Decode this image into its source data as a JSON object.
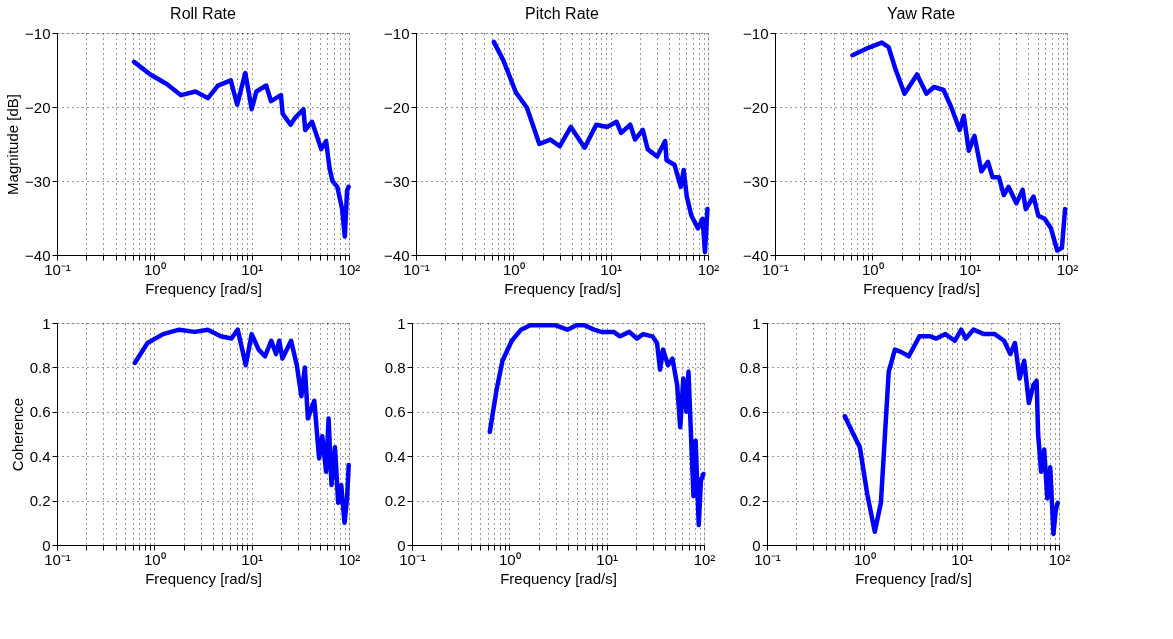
{
  "chart_data": [
    {
      "type": "line",
      "title": "Roll Rate",
      "xlabel": "Frequency [rad/s]",
      "ylabel": "Magnitude [dB]",
      "log": "x",
      "grid": true,
      "marker": "none",
      "line_style": "solid",
      "xlim": [
        0.1,
        100
      ],
      "ylim": [
        -40,
        -10
      ],
      "yticks": [
        -40,
        -30,
        -20,
        -10
      ],
      "xticks": [
        {
          "value": 0.1,
          "label": "10⁻¹"
        },
        {
          "value": 0.2,
          "label": null
        },
        {
          "value": 0.3,
          "label": null
        },
        {
          "value": 0.4,
          "label": null
        },
        {
          "value": 0.5,
          "label": null
        },
        {
          "value": 0.6,
          "label": null
        },
        {
          "value": 0.7,
          "label": null
        },
        {
          "value": 0.8,
          "label": null
        },
        {
          "value": 0.9,
          "label": null
        },
        {
          "value": 1,
          "label": "10⁰"
        },
        {
          "value": 2,
          "label": null
        },
        {
          "value": 3,
          "label": null
        },
        {
          "value": 4,
          "label": null
        },
        {
          "value": 5,
          "label": null
        },
        {
          "value": 6,
          "label": null
        },
        {
          "value": 7,
          "label": null
        },
        {
          "value": 8,
          "label": null
        },
        {
          "value": 9,
          "label": null
        },
        {
          "value": 10,
          "label": "10¹"
        },
        {
          "value": 20,
          "label": null
        },
        {
          "value": 30,
          "label": null
        },
        {
          "value": 40,
          "label": null
        },
        {
          "value": 50,
          "label": null
        },
        {
          "value": 60,
          "label": null
        },
        {
          "value": 70,
          "label": null
        },
        {
          "value": 80,
          "label": null
        },
        {
          "value": 90,
          "label": null
        },
        {
          "value": 100,
          "label": "10²"
        }
      ],
      "series": [
        {
          "color": "#0000ff",
          "x": [
            0.62,
            0.91,
            1.34,
            1.88,
            2.65,
            3.55,
            4.5,
            6.1,
            7.1,
            8.6,
            10,
            11.2,
            14.1,
            15.8,
            20,
            20.8,
            25.1,
            28.2,
            34,
            35.5,
            41.7,
            46.7,
            51.9,
            58.2,
            63,
            67.6,
            75.9,
            85,
            90.6,
            95.5,
            99
          ],
          "values": [
            -13.9,
            -15.6,
            -16.9,
            -18.4,
            -17.9,
            -18.8,
            -17.1,
            -16.4,
            -19.7,
            -15.4,
            -20.3,
            -17.9,
            -17.1,
            -19.2,
            -18.4,
            -20.9,
            -22.4,
            -21.4,
            -20.3,
            -23.1,
            -22,
            -23.9,
            -25.7,
            -24.6,
            -28.2,
            -30,
            -30.8,
            -33.8,
            -37.5,
            -31.3,
            -30.8
          ]
        }
      ]
    },
    {
      "type": "line",
      "title": "Pitch Rate",
      "xlabel": "Frequency [rad/s]",
      "log": "x",
      "grid": true,
      "marker": "none",
      "line_style": "solid",
      "xlim": [
        0.1,
        100
      ],
      "ylim": [
        -40,
        -10
      ],
      "yticks": [
        -40,
        -30,
        -20,
        -10
      ],
      "xticks": [
        {
          "value": 0.1,
          "label": "10⁻¹"
        },
        {
          "value": 0.2,
          "label": null
        },
        {
          "value": 0.3,
          "label": null
        },
        {
          "value": 0.4,
          "label": null
        },
        {
          "value": 0.5,
          "label": null
        },
        {
          "value": 0.6,
          "label": null
        },
        {
          "value": 0.7,
          "label": null
        },
        {
          "value": 0.8,
          "label": null
        },
        {
          "value": 0.9,
          "label": null
        },
        {
          "value": 1,
          "label": "10⁰"
        },
        {
          "value": 2,
          "label": null
        },
        {
          "value": 3,
          "label": null
        },
        {
          "value": 4,
          "label": null
        },
        {
          "value": 5,
          "label": null
        },
        {
          "value": 6,
          "label": null
        },
        {
          "value": 7,
          "label": null
        },
        {
          "value": 8,
          "label": null
        },
        {
          "value": 9,
          "label": null
        },
        {
          "value": 10,
          "label": "10¹"
        },
        {
          "value": 20,
          "label": null
        },
        {
          "value": 30,
          "label": null
        },
        {
          "value": 40,
          "label": null
        },
        {
          "value": 50,
          "label": null
        },
        {
          "value": 60,
          "label": null
        },
        {
          "value": 70,
          "label": null
        },
        {
          "value": 80,
          "label": null
        },
        {
          "value": 90,
          "label": null
        },
        {
          "value": 100,
          "label": "10²"
        }
      ],
      "series": [
        {
          "color": "#0000ff",
          "x": [
            0.63,
            0.79,
            1.06,
            1.38,
            1.85,
            2.4,
            3.0,
            3.9,
            5.4,
            7.1,
            9.2,
            11.5,
            12.8,
            15.9,
            17.8,
            21.4,
            24,
            30,
            36.3,
            37.5,
            45.2,
            52.5,
            56.3,
            60.5,
            67.5,
            79,
            88,
            93,
            98.7
          ],
          "values": [
            -11.2,
            -13.7,
            -18,
            -20.1,
            -25,
            -24.4,
            -25.3,
            -22.7,
            -25.5,
            -22.4,
            -22.7,
            -22,
            -23.5,
            -22.4,
            -24.4,
            -23.1,
            -25.7,
            -26.7,
            -24.6,
            -27.2,
            -27.8,
            -30.8,
            -28.5,
            -32.1,
            -34.7,
            -36.4,
            -35.1,
            -39.6,
            -33.8
          ]
        }
      ]
    },
    {
      "type": "line",
      "title": "Yaw Rate",
      "xlabel": "Frequency [rad/s]",
      "log": "x",
      "grid": true,
      "marker": "none",
      "line_style": "solid",
      "xlim": [
        0.1,
        100
      ],
      "ylim": [
        -40,
        -10
      ],
      "yticks": [
        -40,
        -30,
        -20,
        -10
      ],
      "xticks": [
        {
          "value": 0.1,
          "label": "10⁻¹"
        },
        {
          "value": 0.2,
          "label": null
        },
        {
          "value": 0.3,
          "label": null
        },
        {
          "value": 0.4,
          "label": null
        },
        {
          "value": 0.5,
          "label": null
        },
        {
          "value": 0.6,
          "label": null
        },
        {
          "value": 0.7,
          "label": null
        },
        {
          "value": 0.8,
          "label": null
        },
        {
          "value": 0.9,
          "label": null
        },
        {
          "value": 1,
          "label": "10⁰"
        },
        {
          "value": 2,
          "label": null
        },
        {
          "value": 3,
          "label": null
        },
        {
          "value": 4,
          "label": null
        },
        {
          "value": 5,
          "label": null
        },
        {
          "value": 6,
          "label": null
        },
        {
          "value": 7,
          "label": null
        },
        {
          "value": 8,
          "label": null
        },
        {
          "value": 9,
          "label": null
        },
        {
          "value": 10,
          "label": "10¹"
        },
        {
          "value": 20,
          "label": null
        },
        {
          "value": 30,
          "label": null
        },
        {
          "value": 40,
          "label": null
        },
        {
          "value": 50,
          "label": null
        },
        {
          "value": 60,
          "label": null
        },
        {
          "value": 70,
          "label": null
        },
        {
          "value": 80,
          "label": null
        },
        {
          "value": 90,
          "label": null
        },
        {
          "value": 100,
          "label": "10²"
        }
      ],
      "series": [
        {
          "color": "#0000ff",
          "x": [
            0.625,
            0.91,
            1.25,
            1.47,
            1.71,
            2.14,
            2.88,
            3.6,
            4.3,
            5.4,
            6.5,
            7.9,
            8.7,
            9.8,
            11.2,
            13.2,
            15.4,
            17.2,
            20,
            22.4,
            25.1,
            30.2,
            35,
            37.7,
            45.4,
            50.7,
            58.9,
            68.4,
            79.4,
            88.7,
            95.5
          ],
          "values": [
            -13,
            -12,
            -11.3,
            -11.9,
            -14.7,
            -18.2,
            -15.6,
            -18.2,
            -17.3,
            -17.7,
            -20.1,
            -23.1,
            -21.2,
            -25.9,
            -23.9,
            -28.7,
            -27.4,
            -29.5,
            -29.5,
            -31.9,
            -30.8,
            -33,
            -31.2,
            -33.8,
            -32.1,
            -34.7,
            -35.1,
            -36.4,
            -39.4,
            -39,
            -33.8
          ]
        }
      ]
    },
    {
      "type": "line",
      "xlabel": "Frequency [rad/s]",
      "ylabel": "Coherence",
      "log": "x",
      "grid": true,
      "marker": "none",
      "line_style": "solid",
      "xlim": [
        0.1,
        100
      ],
      "ylim": [
        0,
        1
      ],
      "yticks": [
        0,
        0.2,
        0.4,
        0.6,
        0.8,
        1
      ],
      "xticks": [
        {
          "value": 0.1,
          "label": "10⁻¹"
        },
        {
          "value": 0.2,
          "label": null
        },
        {
          "value": 0.3,
          "label": null
        },
        {
          "value": 0.4,
          "label": null
        },
        {
          "value": 0.5,
          "label": null
        },
        {
          "value": 0.6,
          "label": null
        },
        {
          "value": 0.7,
          "label": null
        },
        {
          "value": 0.8,
          "label": null
        },
        {
          "value": 0.9,
          "label": null
        },
        {
          "value": 1,
          "label": "10⁰"
        },
        {
          "value": 2,
          "label": null
        },
        {
          "value": 3,
          "label": null
        },
        {
          "value": 4,
          "label": null
        },
        {
          "value": 5,
          "label": null
        },
        {
          "value": 6,
          "label": null
        },
        {
          "value": 7,
          "label": null
        },
        {
          "value": 8,
          "label": null
        },
        {
          "value": 9,
          "label": null
        },
        {
          "value": 10,
          "label": "10¹"
        },
        {
          "value": 20,
          "label": null
        },
        {
          "value": 30,
          "label": null
        },
        {
          "value": 40,
          "label": null
        },
        {
          "value": 50,
          "label": null
        },
        {
          "value": 60,
          "label": null
        },
        {
          "value": 70,
          "label": null
        },
        {
          "value": 80,
          "label": null
        },
        {
          "value": 90,
          "label": null
        },
        {
          "value": 100,
          "label": "10²"
        }
      ],
      "series": [
        {
          "color": "#0000ff",
          "x": [
            0.63,
            0.85,
            1.23,
            1.8,
            2.6,
            3.55,
            4.8,
            6.2,
            7.2,
            8.7,
            10,
            11.8,
            13.7,
            15.9,
            17.8,
            19.2,
            20.7,
            25.4,
            29.1,
            32.4,
            35.2,
            37.8,
            44,
            49.3,
            53.1,
            58.2,
            61.7,
            66.1,
            71.8,
            77.4,
            83.2,
            90,
            95.5,
            99.3
          ],
          "values": [
            0.82,
            0.91,
            0.95,
            0.97,
            0.96,
            0.97,
            0.94,
            0.93,
            0.97,
            0.81,
            0.95,
            0.88,
            0.85,
            0.92,
            0.86,
            0.92,
            0.84,
            0.92,
            0.81,
            0.67,
            0.8,
            0.57,
            0.65,
            0.39,
            0.49,
            0.33,
            0.57,
            0.27,
            0.44,
            0.19,
            0.27,
            0.1,
            0.21,
            0.36
          ]
        }
      ]
    },
    {
      "type": "line",
      "xlabel": "Frequency [rad/s]",
      "log": "x",
      "grid": true,
      "marker": "none",
      "line_style": "solid",
      "xlim": [
        0.1,
        100
      ],
      "ylim": [
        0,
        1
      ],
      "yticks": [
        0,
        0.2,
        0.4,
        0.6,
        0.8,
        1
      ],
      "xticks": [
        {
          "value": 0.1,
          "label": "10⁻¹"
        },
        {
          "value": 0.2,
          "label": null
        },
        {
          "value": 0.3,
          "label": null
        },
        {
          "value": 0.4,
          "label": null
        },
        {
          "value": 0.5,
          "label": null
        },
        {
          "value": 0.6,
          "label": null
        },
        {
          "value": 0.7,
          "label": null
        },
        {
          "value": 0.8,
          "label": null
        },
        {
          "value": 0.9,
          "label": null
        },
        {
          "value": 1,
          "label": "10⁰"
        },
        {
          "value": 2,
          "label": null
        },
        {
          "value": 3,
          "label": null
        },
        {
          "value": 4,
          "label": null
        },
        {
          "value": 5,
          "label": null
        },
        {
          "value": 6,
          "label": null
        },
        {
          "value": 7,
          "label": null
        },
        {
          "value": 8,
          "label": null
        },
        {
          "value": 9,
          "label": null
        },
        {
          "value": 10,
          "label": "10¹"
        },
        {
          "value": 20,
          "label": null
        },
        {
          "value": 30,
          "label": null
        },
        {
          "value": 40,
          "label": null
        },
        {
          "value": 50,
          "label": null
        },
        {
          "value": 60,
          "label": null
        },
        {
          "value": 70,
          "label": null
        },
        {
          "value": 80,
          "label": null
        },
        {
          "value": 90,
          "label": null
        },
        {
          "value": 100,
          "label": "10²"
        }
      ],
      "series": [
        {
          "color": "#0000ff",
          "x": [
            0.63,
            0.74,
            0.85,
            1.06,
            1.32,
            1.64,
            2.95,
            3.95,
            4.9,
            5.9,
            7.4,
            8.8,
            11.8,
            13.7,
            17.1,
            20.4,
            23.7,
            29.5,
            32.9,
            35.4,
            38,
            42.6,
            47.4,
            53,
            57,
            61.3,
            65.9,
            69.3,
            73.6,
            78,
            82,
            88.3,
            92.9,
            98.6
          ],
          "values": [
            0.51,
            0.7,
            0.83,
            0.92,
            0.97,
            0.99,
            0.99,
            0.97,
            0.99,
            0.99,
            0.97,
            0.96,
            0.96,
            0.94,
            0.96,
            0.93,
            0.95,
            0.94,
            0.91,
            0.79,
            0.88,
            0.81,
            0.84,
            0.72,
            0.53,
            0.75,
            0.6,
            0.78,
            0.49,
            0.22,
            0.47,
            0.09,
            0.29,
            0.32
          ]
        }
      ]
    },
    {
      "type": "line",
      "xlabel": "Frequency [rad/s]",
      "log": "x",
      "grid": true,
      "marker": "none",
      "line_style": "solid",
      "xlim": [
        0.1,
        100
      ],
      "ylim": [
        0,
        1
      ],
      "yticks": [
        0,
        0.2,
        0.4,
        0.6,
        0.8,
        1
      ],
      "xticks": [
        {
          "value": 0.1,
          "label": "10⁻¹"
        },
        {
          "value": 0.2,
          "label": null
        },
        {
          "value": 0.3,
          "label": null
        },
        {
          "value": 0.4,
          "label": null
        },
        {
          "value": 0.5,
          "label": null
        },
        {
          "value": 0.6,
          "label": null
        },
        {
          "value": 0.7,
          "label": null
        },
        {
          "value": 0.8,
          "label": null
        },
        {
          "value": 0.9,
          "label": null
        },
        {
          "value": 1,
          "label": "10⁰"
        },
        {
          "value": 2,
          "label": null
        },
        {
          "value": 3,
          "label": null
        },
        {
          "value": 4,
          "label": null
        },
        {
          "value": 5,
          "label": null
        },
        {
          "value": 6,
          "label": null
        },
        {
          "value": 7,
          "label": null
        },
        {
          "value": 8,
          "label": null
        },
        {
          "value": 9,
          "label": null
        },
        {
          "value": 10,
          "label": "10¹"
        },
        {
          "value": 20,
          "label": null
        },
        {
          "value": 30,
          "label": null
        },
        {
          "value": 40,
          "label": null
        },
        {
          "value": 50,
          "label": null
        },
        {
          "value": 60,
          "label": null
        },
        {
          "value": 70,
          "label": null
        },
        {
          "value": 80,
          "label": null
        },
        {
          "value": 90,
          "label": null
        },
        {
          "value": 100,
          "label": "10²"
        }
      ],
      "series": [
        {
          "color": "#0000ff",
          "x": [
            0.63,
            0.77,
            0.9,
            1.07,
            1.28,
            1.48,
            1.78,
            2.06,
            2.38,
            2.86,
            3.68,
            4.75,
            5.5,
            6.8,
            8.5,
            9.9,
            11,
            13.2,
            17,
            21.9,
            27.3,
            31.6,
            35.3,
            39.4,
            43.9,
            49,
            54.6,
            58.9,
            61,
            65.5,
            70.5,
            75.8,
            81.3,
            87.7,
            92.9,
            97
          ],
          "values": [
            0.58,
            0.5,
            0.44,
            0.23,
            0.06,
            0.19,
            0.78,
            0.88,
            0.87,
            0.85,
            0.94,
            0.94,
            0.93,
            0.95,
            0.92,
            0.97,
            0.93,
            0.97,
            0.95,
            0.95,
            0.92,
            0.86,
            0.91,
            0.75,
            0.83,
            0.64,
            0.72,
            0.74,
            0.5,
            0.33,
            0.43,
            0.21,
            0.35,
            0.05,
            0.16,
            0.19
          ]
        }
      ]
    }
  ]
}
